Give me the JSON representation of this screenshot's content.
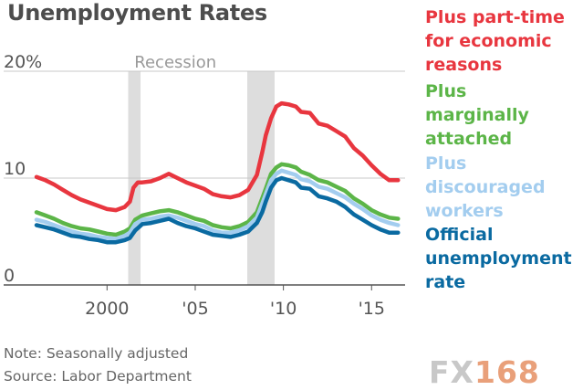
{
  "chart_data": {
    "type": "line",
    "title": "Unemployment Rates",
    "y_unit": "%",
    "ylim": [
      0,
      20
    ],
    "y_ticks": [
      0,
      10,
      20
    ],
    "y_tick_labels": [
      "0",
      "10",
      "20%"
    ],
    "xlim": [
      1996.0,
      2016.9
    ],
    "x_ticks": [
      2000,
      2005,
      2010,
      2015
    ],
    "x_tick_labels": [
      "2000",
      "'05",
      "'10",
      "'15"
    ],
    "grid": "horizontal",
    "legend_position": "right",
    "recessions": {
      "label": "Recession",
      "periods": [
        [
          2001.2,
          2001.9
        ],
        [
          2007.95,
          2009.5
        ]
      ]
    },
    "series": [
      {
        "name": "Plus part-time for economic reasons",
        "color": "#e8363f",
        "points": [
          [
            1996.0,
            10.1
          ],
          [
            1996.5,
            9.8
          ],
          [
            1997.0,
            9.4
          ],
          [
            1997.5,
            8.9
          ],
          [
            1998.0,
            8.4
          ],
          [
            1998.5,
            8.0
          ],
          [
            1999.0,
            7.7
          ],
          [
            1999.5,
            7.4
          ],
          [
            2000.0,
            7.1
          ],
          [
            2000.5,
            7.0
          ],
          [
            2001.0,
            7.3
          ],
          [
            2001.3,
            7.8
          ],
          [
            2001.5,
            9.1
          ],
          [
            2001.75,
            9.6
          ],
          [
            2002.0,
            9.6
          ],
          [
            2002.5,
            9.7
          ],
          [
            2003.0,
            10.0
          ],
          [
            2003.5,
            10.4
          ],
          [
            2004.0,
            10.0
          ],
          [
            2004.5,
            9.6
          ],
          [
            2005.0,
            9.3
          ],
          [
            2005.5,
            9.0
          ],
          [
            2006.0,
            8.5
          ],
          [
            2006.5,
            8.3
          ],
          [
            2007.0,
            8.2
          ],
          [
            2007.5,
            8.4
          ],
          [
            2008.0,
            8.9
          ],
          [
            2008.5,
            10.3
          ],
          [
            2008.8,
            12.4
          ],
          [
            2009.0,
            14.0
          ],
          [
            2009.3,
            15.6
          ],
          [
            2009.6,
            16.7
          ],
          [
            2009.9,
            17.0
          ],
          [
            2010.3,
            16.9
          ],
          [
            2010.7,
            16.7
          ],
          [
            2011.0,
            16.2
          ],
          [
            2011.5,
            16.1
          ],
          [
            2012.0,
            15.1
          ],
          [
            2012.5,
            14.9
          ],
          [
            2013.0,
            14.4
          ],
          [
            2013.5,
            13.9
          ],
          [
            2014.0,
            12.8
          ],
          [
            2014.5,
            12.1
          ],
          [
            2015.0,
            11.2
          ],
          [
            2015.5,
            10.4
          ],
          [
            2016.0,
            9.8
          ],
          [
            2016.5,
            9.8
          ]
        ]
      },
      {
        "name": "Plus marginally attached",
        "color": "#5cb548",
        "points": [
          [
            1996.0,
            6.8
          ],
          [
            1996.5,
            6.5
          ],
          [
            1997.0,
            6.2
          ],
          [
            1997.5,
            5.8
          ],
          [
            1998.0,
            5.5
          ],
          [
            1998.5,
            5.3
          ],
          [
            1999.0,
            5.2
          ],
          [
            1999.5,
            5.0
          ],
          [
            2000.0,
            4.8
          ],
          [
            2000.5,
            4.7
          ],
          [
            2001.0,
            5.0
          ],
          [
            2001.3,
            5.3
          ],
          [
            2001.6,
            6.1
          ],
          [
            2002.0,
            6.5
          ],
          [
            2002.5,
            6.7
          ],
          [
            2003.0,
            6.9
          ],
          [
            2003.5,
            7.0
          ],
          [
            2004.0,
            6.8
          ],
          [
            2004.5,
            6.5
          ],
          [
            2005.0,
            6.2
          ],
          [
            2005.5,
            6.0
          ],
          [
            2006.0,
            5.6
          ],
          [
            2006.5,
            5.4
          ],
          [
            2007.0,
            5.3
          ],
          [
            2007.5,
            5.5
          ],
          [
            2008.0,
            5.9
          ],
          [
            2008.5,
            6.8
          ],
          [
            2008.8,
            8.1
          ],
          [
            2009.0,
            9.0
          ],
          [
            2009.3,
            10.4
          ],
          [
            2009.6,
            11.0
          ],
          [
            2009.9,
            11.3
          ],
          [
            2010.3,
            11.2
          ],
          [
            2010.7,
            11.0
          ],
          [
            2011.0,
            10.6
          ],
          [
            2011.5,
            10.3
          ],
          [
            2012.0,
            9.8
          ],
          [
            2012.5,
            9.6
          ],
          [
            2013.0,
            9.2
          ],
          [
            2013.5,
            8.8
          ],
          [
            2014.0,
            8.1
          ],
          [
            2014.5,
            7.6
          ],
          [
            2015.0,
            7.0
          ],
          [
            2015.5,
            6.6
          ],
          [
            2016.0,
            6.3
          ],
          [
            2016.5,
            6.2
          ]
        ]
      },
      {
        "name": "Plus discouraged workers",
        "color": "#a3cdef",
        "points": [
          [
            1996.0,
            6.1
          ],
          [
            1996.5,
            5.9
          ],
          [
            1997.0,
            5.6
          ],
          [
            1997.5,
            5.3
          ],
          [
            1998.0,
            5.0
          ],
          [
            1998.5,
            4.8
          ],
          [
            1999.0,
            4.7
          ],
          [
            1999.5,
            4.5
          ],
          [
            2000.0,
            4.4
          ],
          [
            2000.5,
            4.3
          ],
          [
            2001.0,
            4.6
          ],
          [
            2001.3,
            4.9
          ],
          [
            2001.6,
            5.7
          ],
          [
            2002.0,
            6.1
          ],
          [
            2002.5,
            6.2
          ],
          [
            2003.0,
            6.4
          ],
          [
            2003.5,
            6.5
          ],
          [
            2004.0,
            6.3
          ],
          [
            2004.5,
            6.0
          ],
          [
            2005.0,
            5.7
          ],
          [
            2005.5,
            5.5
          ],
          [
            2006.0,
            5.1
          ],
          [
            2006.5,
            4.9
          ],
          [
            2007.0,
            4.9
          ],
          [
            2007.5,
            5.1
          ],
          [
            2008.0,
            5.5
          ],
          [
            2008.5,
            6.3
          ],
          [
            2008.8,
            7.6
          ],
          [
            2009.0,
            8.5
          ],
          [
            2009.3,
            9.8
          ],
          [
            2009.6,
            10.4
          ],
          [
            2009.9,
            10.7
          ],
          [
            2010.3,
            10.5
          ],
          [
            2010.7,
            10.3
          ],
          [
            2011.0,
            9.9
          ],
          [
            2011.5,
            9.7
          ],
          [
            2012.0,
            9.2
          ],
          [
            2012.5,
            9.0
          ],
          [
            2013.0,
            8.6
          ],
          [
            2013.5,
            8.2
          ],
          [
            2014.0,
            7.6
          ],
          [
            2014.5,
            7.1
          ],
          [
            2015.0,
            6.5
          ],
          [
            2015.5,
            6.1
          ],
          [
            2016.0,
            5.8
          ],
          [
            2016.5,
            5.6
          ]
        ]
      },
      {
        "name": "Official unemployment rate",
        "color": "#0a6aa1",
        "points": [
          [
            1996.0,
            5.6
          ],
          [
            1996.5,
            5.4
          ],
          [
            1997.0,
            5.2
          ],
          [
            1997.5,
            4.9
          ],
          [
            1998.0,
            4.6
          ],
          [
            1998.5,
            4.5
          ],
          [
            1999.0,
            4.3
          ],
          [
            1999.5,
            4.2
          ],
          [
            2000.0,
            4.0
          ],
          [
            2000.5,
            4.0
          ],
          [
            2001.0,
            4.2
          ],
          [
            2001.3,
            4.4
          ],
          [
            2001.6,
            5.1
          ],
          [
            2002.0,
            5.7
          ],
          [
            2002.5,
            5.8
          ],
          [
            2003.0,
            6.0
          ],
          [
            2003.5,
            6.2
          ],
          [
            2004.0,
            5.8
          ],
          [
            2004.5,
            5.5
          ],
          [
            2005.0,
            5.3
          ],
          [
            2005.5,
            5.0
          ],
          [
            2006.0,
            4.7
          ],
          [
            2006.5,
            4.6
          ],
          [
            2007.0,
            4.5
          ],
          [
            2007.5,
            4.7
          ],
          [
            2008.0,
            5.0
          ],
          [
            2008.5,
            5.8
          ],
          [
            2008.8,
            6.8
          ],
          [
            2009.0,
            7.8
          ],
          [
            2009.3,
            9.1
          ],
          [
            2009.6,
            9.8
          ],
          [
            2009.9,
            10.0
          ],
          [
            2010.3,
            9.8
          ],
          [
            2010.7,
            9.6
          ],
          [
            2011.0,
            9.1
          ],
          [
            2011.5,
            9.0
          ],
          [
            2012.0,
            8.3
          ],
          [
            2012.5,
            8.1
          ],
          [
            2013.0,
            7.8
          ],
          [
            2013.5,
            7.3
          ],
          [
            2014.0,
            6.6
          ],
          [
            2014.5,
            6.1
          ],
          [
            2015.0,
            5.6
          ],
          [
            2015.5,
            5.2
          ],
          [
            2016.0,
            4.9
          ],
          [
            2016.5,
            4.9
          ]
        ]
      }
    ],
    "notes": [
      "Note: Seasonally adjusted",
      "Source: Labor Department"
    ]
  },
  "legend": [
    {
      "label": "Plus part-time\nfor economic\nreasons",
      "color": "#e8363f"
    },
    {
      "label": "Plus\nmarginally\nattached",
      "color": "#5cb548"
    },
    {
      "label": "Plus\ndiscouraged\nworkers",
      "color": "#a3cdef"
    },
    {
      "label": "Official\nunemployment\nrate",
      "color": "#0a6aa1"
    }
  ],
  "watermark": {
    "prefix": "FX",
    "suffix": "168"
  }
}
